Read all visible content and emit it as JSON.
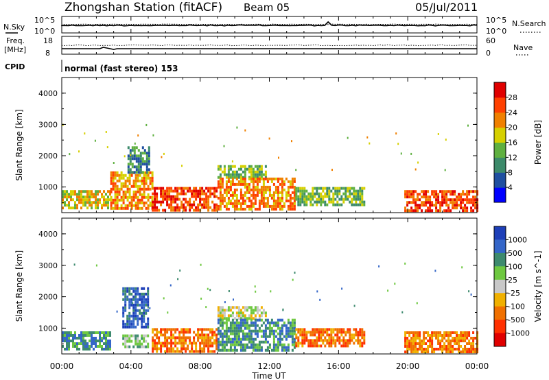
{
  "header": {
    "station": "Zhongshan Station (fitACF)",
    "beam": "Beam 05",
    "date": "05/Jul/2011"
  },
  "nsky_panel": {
    "left_label": "N.Sky",
    "right_label": "N.Search",
    "left_ticks": [
      "10^5",
      "10^0"
    ],
    "right_ticks": [
      "10^5",
      "10^0"
    ]
  },
  "freq_panel": {
    "left_label_1": "Freq.",
    "left_label_2": "[MHz]",
    "right_label": "Nave",
    "left_ticks": [
      "18",
      "8"
    ],
    "right_ticks": [
      "60",
      "0"
    ]
  },
  "cpid": {
    "label": "CPID",
    "text": "normal (fast stereo) 153"
  },
  "chart_data": [
    {
      "type": "heatmap",
      "title": "",
      "quantity": "Power",
      "ylabel": "Slant Range [km]",
      "xlabel": "",
      "xlim": [
        "00:00",
        "24:00"
      ],
      "ylim": [
        180,
        4500
      ],
      "yticks": [
        "1000",
        "2000",
        "3000",
        "4000"
      ],
      "colorbar": {
        "label": "Power [dB]",
        "ticks": [
          "4",
          "8",
          "12",
          "16",
          "20",
          "24",
          "28"
        ],
        "colors": [
          "#0000ff",
          "#1f4fa0",
          "#3c8a6a",
          "#5fb040",
          "#d6d000",
          "#f08000",
          "#ff4000",
          "#e00000"
        ]
      },
      "echo_regions": [
        {
          "start_h": 0.0,
          "end_h": 2.8,
          "range_min_km": 300,
          "range_max_km": 900,
          "power_db": 16
        },
        {
          "start_h": 2.8,
          "end_h": 5.2,
          "range_min_km": 300,
          "range_max_km": 1500,
          "power_db": 20
        },
        {
          "start_h": 3.8,
          "end_h": 5.0,
          "range_min_km": 1500,
          "range_max_km": 2300,
          "power_db": 8
        },
        {
          "start_h": 5.2,
          "end_h": 9.0,
          "range_min_km": 250,
          "range_max_km": 1000,
          "power_db": 24
        },
        {
          "start_h": 9.0,
          "end_h": 11.8,
          "range_min_km": 1300,
          "range_max_km": 1700,
          "power_db": 12
        },
        {
          "start_h": 9.0,
          "end_h": 13.5,
          "range_min_km": 300,
          "range_max_km": 1300,
          "power_db": 20
        },
        {
          "start_h": 13.5,
          "end_h": 17.5,
          "range_min_km": 400,
          "range_max_km": 1000,
          "power_db": 12
        },
        {
          "start_h": 19.8,
          "end_h": 24.0,
          "range_min_km": 250,
          "range_max_km": 900,
          "power_db": 24
        }
      ]
    },
    {
      "type": "heatmap",
      "title": "",
      "quantity": "Velocity",
      "ylabel": "Slant Range [km]",
      "xlabel": "Time UT",
      "xlim": [
        "00:00",
        "24:00"
      ],
      "xticks": [
        "00:00",
        "04:00",
        "08:00",
        "12:00",
        "16:00",
        "20:00",
        "00:00"
      ],
      "ylim": [
        180,
        4500
      ],
      "yticks": [
        "1000",
        "2000",
        "3000",
        "4000"
      ],
      "colorbar": {
        "label": "Velocity [m s^-1]",
        "ticks": [
          "1000",
          "500",
          "100",
          "25",
          "-25",
          "-100",
          "-500",
          "-1000"
        ],
        "colors": [
          "#1d3fb8",
          "#3466c8",
          "#3d8a6e",
          "#6ec840",
          "#c8c8c8",
          "#f0b000",
          "#f07000",
          "#ff3000",
          "#e00000"
        ]
      },
      "echo_regions": [
        {
          "start_h": 0.0,
          "end_h": 2.8,
          "range_min_km": 300,
          "range_max_km": 900,
          "velocity_ms": 100
        },
        {
          "start_h": 3.5,
          "end_h": 5.0,
          "range_min_km": 1000,
          "range_max_km": 2300,
          "velocity_ms": 500
        },
        {
          "start_h": 3.5,
          "end_h": 5.0,
          "range_min_km": 400,
          "range_max_km": 800,
          "velocity_ms": 50
        },
        {
          "start_h": 5.2,
          "end_h": 9.0,
          "range_min_km": 250,
          "range_max_km": 1000,
          "velocity_ms": -100
        },
        {
          "start_h": 9.0,
          "end_h": 11.8,
          "range_min_km": 1300,
          "range_max_km": 1700,
          "velocity_ms": 0
        },
        {
          "start_h": 9.0,
          "end_h": 13.5,
          "range_min_km": 300,
          "range_max_km": 1300,
          "velocity_ms": 100
        },
        {
          "start_h": 13.5,
          "end_h": 17.5,
          "range_min_km": 400,
          "range_max_km": 1000,
          "velocity_ms": -100
        },
        {
          "start_h": 19.8,
          "end_h": 24.0,
          "range_min_km": 250,
          "range_max_km": 900,
          "velocity_ms": -200
        }
      ]
    }
  ]
}
